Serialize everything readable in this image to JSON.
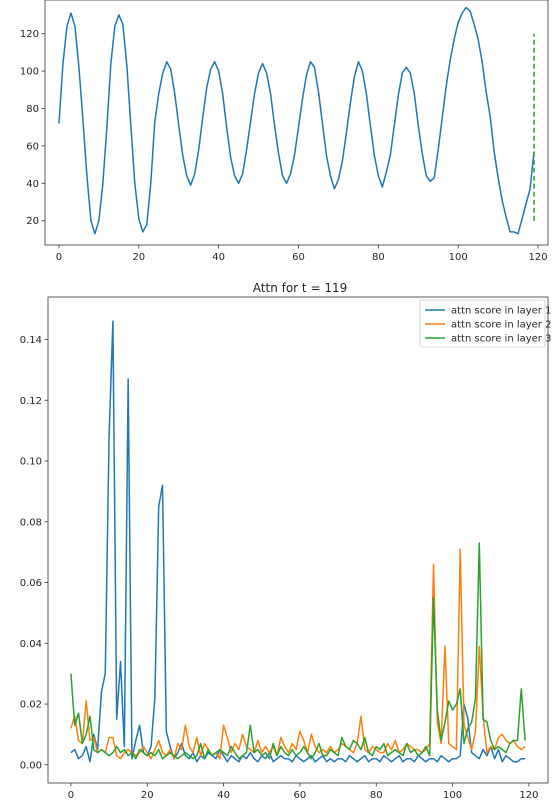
{
  "chart_data": [
    {
      "type": "line",
      "title": "",
      "xlabel": "",
      "ylabel": "",
      "xlim": [
        -3.5,
        122.5
      ],
      "ylim": [
        7,
        138
      ],
      "xticks": [
        0,
        20,
        40,
        60,
        80,
        100,
        120
      ],
      "yticks": [
        20,
        40,
        60,
        80,
        100,
        120
      ],
      "grid": false,
      "series": [
        {
          "color": "#1f77b4",
          "style": "solid",
          "x": [
            0,
            1,
            2,
            3,
            4,
            5,
            6,
            7,
            8,
            9,
            10,
            11,
            12,
            13,
            14,
            15,
            16,
            17,
            18,
            19,
            20,
            21,
            22,
            23,
            24,
            25,
            26,
            27,
            28,
            29,
            30,
            31,
            32,
            33,
            34,
            35,
            36,
            37,
            38,
            39,
            40,
            41,
            42,
            43,
            44,
            45,
            46,
            47,
            48,
            49,
            50,
            51,
            52,
            53,
            54,
            55,
            56,
            57,
            58,
            59,
            60,
            61,
            62,
            63,
            64,
            65,
            66,
            67,
            68,
            69,
            70,
            71,
            72,
            73,
            74,
            75,
            76,
            77,
            78,
            79,
            80,
            81,
            82,
            83,
            84,
            85,
            86,
            87,
            88,
            89,
            90,
            91,
            92,
            93,
            94,
            95,
            96,
            97,
            98,
            99,
            100,
            101,
            102,
            103,
            104,
            105,
            106,
            107,
            108,
            109,
            110,
            111,
            112,
            113,
            114,
            115,
            116,
            117,
            118,
            119
          ],
          "y": [
            72,
            104,
            124,
            131,
            124,
            102,
            74,
            44,
            20,
            13,
            20,
            40,
            70,
            104,
            124,
            130,
            125,
            103,
            71,
            40,
            21,
            14,
            18,
            40,
            73,
            88,
            99,
            105,
            101,
            88,
            71,
            55,
            44,
            39,
            45,
            58,
            75,
            91,
            101,
            105,
            100,
            88,
            70,
            54,
            44,
            40,
            45,
            58,
            73,
            88,
            99,
            104,
            99,
            88,
            71,
            56,
            44,
            40,
            45,
            55,
            70,
            85,
            98,
            105,
            102,
            89,
            72,
            55,
            44,
            37,
            42,
            52,
            67,
            83,
            97,
            105,
            100,
            88,
            71,
            55,
            44,
            38,
            46,
            55,
            71,
            87,
            99,
            102,
            99,
            88,
            71,
            56,
            44,
            41,
            43,
            58,
            75,
            92,
            106,
            117,
            126,
            131,
            134,
            132,
            125,
            117,
            105,
            89,
            76,
            57,
            43,
            31,
            22,
            14,
            14,
            13,
            21,
            29,
            37,
            57
          ]
        },
        {
          "color": "#2ca02c",
          "style": "dashed",
          "x": [
            119,
            119
          ],
          "y": [
            20,
            120
          ]
        }
      ]
    },
    {
      "type": "line",
      "title": "Attn for t = 119",
      "xlabel": "",
      "ylabel": "",
      "xlim": [
        -6,
        125
      ],
      "ylim": [
        -0.006,
        0.154
      ],
      "xticks": [
        0,
        20,
        40,
        60,
        80,
        100,
        120
      ],
      "yticks": [
        0.0,
        0.02,
        0.04,
        0.06,
        0.08,
        0.1,
        0.12,
        0.14
      ],
      "ytick_labels": [
        "0.00",
        "0.02",
        "0.04",
        "0.06",
        "0.08",
        "0.10",
        "0.12",
        "0.14"
      ],
      "grid": false,
      "legend": "top-right",
      "series": [
        {
          "name": "attn score in layer 1",
          "color": "#1f77b4",
          "x": [
            0,
            1,
            2,
            3,
            4,
            5,
            6,
            7,
            8,
            9,
            10,
            11,
            12,
            13,
            14,
            15,
            16,
            17,
            18,
            19,
            20,
            21,
            22,
            23,
            24,
            25,
            26,
            27,
            28,
            29,
            30,
            31,
            32,
            33,
            34,
            35,
            36,
            37,
            38,
            39,
            40,
            41,
            42,
            43,
            44,
            45,
            46,
            47,
            48,
            49,
            50,
            51,
            52,
            53,
            54,
            55,
            56,
            57,
            58,
            59,
            60,
            61,
            62,
            63,
            64,
            65,
            66,
            67,
            68,
            69,
            70,
            71,
            72,
            73,
            74,
            75,
            76,
            77,
            78,
            79,
            80,
            81,
            82,
            83,
            84,
            85,
            86,
            87,
            88,
            89,
            90,
            91,
            92,
            93,
            94,
            95,
            96,
            97,
            98,
            99,
            100,
            101,
            102,
            103,
            104,
            105,
            106,
            107,
            108,
            109,
            110,
            111,
            112,
            113,
            114,
            115,
            116,
            117,
            118,
            119
          ],
          "y": [
            0.004,
            0.005,
            0.002,
            0.003,
            0.006,
            0.001,
            0.01,
            0.005,
            0.024,
            0.03,
            0.108,
            0.146,
            0.015,
            0.034,
            0.006,
            0.127,
            0.002,
            0.008,
            0.013,
            0.004,
            0.003,
            0.006,
            0.022,
            0.085,
            0.092,
            0.011,
            0.006,
            0.002,
            0.004,
            0.007,
            0.003,
            0.002,
            0.004,
            0.001,
            0.003,
            0.002,
            0.004,
            0.003,
            0.002,
            0.005,
            0.003,
            0.001,
            0.003,
            0.002,
            0.001,
            0.003,
            0.002,
            0.004,
            0.002,
            0.001,
            0.003,
            0.002,
            0.004,
            0.001,
            0.002,
            0.003,
            0.002,
            0.002,
            0.001,
            0.003,
            0.002,
            0.001,
            0.002,
            0.003,
            0.001,
            0.002,
            0.003,
            0.001,
            0.002,
            0.001,
            0.002,
            0.002,
            0.001,
            0.003,
            0.002,
            0.001,
            0.002,
            0.003,
            0.001,
            0.002,
            0.002,
            0.001,
            0.003,
            0.002,
            0.001,
            0.002,
            0.003,
            0.001,
            0.002,
            0.002,
            0.001,
            0.003,
            0.002,
            0.001,
            0.002,
            0.002,
            0.001,
            0.003,
            0.002,
            0.001,
            0.002,
            0.002,
            0.003,
            0.02,
            0.015,
            0.004,
            0.003,
            0.002,
            0.005,
            0.003,
            0.006,
            0.002,
            0.005,
            0.001,
            0.003,
            0.002,
            0.001,
            0.001,
            0.002,
            0.002
          ]
        },
        {
          "name": "attn score in layer 2",
          "color": "#ff7f0e",
          "x": [
            0,
            1,
            2,
            3,
            4,
            5,
            6,
            7,
            8,
            9,
            10,
            11,
            12,
            13,
            14,
            15,
            16,
            17,
            18,
            19,
            20,
            21,
            22,
            23,
            24,
            25,
            26,
            27,
            28,
            29,
            30,
            31,
            32,
            33,
            34,
            35,
            36,
            37,
            38,
            39,
            40,
            41,
            42,
            43,
            44,
            45,
            46,
            47,
            48,
            49,
            50,
            51,
            52,
            53,
            54,
            55,
            56,
            57,
            58,
            59,
            60,
            61,
            62,
            63,
            64,
            65,
            66,
            67,
            68,
            69,
            70,
            71,
            72,
            73,
            74,
            75,
            76,
            77,
            78,
            79,
            80,
            81,
            82,
            83,
            84,
            85,
            86,
            87,
            88,
            89,
            90,
            91,
            92,
            93,
            94,
            95,
            96,
            97,
            98,
            99,
            100,
            101,
            102,
            103,
            104,
            105,
            106,
            107,
            108,
            109,
            110,
            111,
            112,
            113,
            114,
            115,
            116,
            117,
            118,
            119
          ],
          "y": [
            0.012,
            0.016,
            0.008,
            0.007,
            0.021,
            0.008,
            0.009,
            0.004,
            0.005,
            0.004,
            0.009,
            0.009,
            0.003,
            0.002,
            0.004,
            0.005,
            0.004,
            0.003,
            0.004,
            0.006,
            0.004,
            0.002,
            0.005,
            0.008,
            0.004,
            0.003,
            0.005,
            0.002,
            0.007,
            0.005,
            0.013,
            0.006,
            0.004,
            0.009,
            0.003,
            0.007,
            0.005,
            0.003,
            0.004,
            0.002,
            0.013,
            0.009,
            0.004,
            0.007,
            0.005,
            0.01,
            0.006,
            0.005,
            0.004,
            0.008,
            0.004,
            0.006,
            0.004,
            0.006,
            0.003,
            0.009,
            0.006,
            0.004,
            0.007,
            0.005,
            0.011,
            0.008,
            0.004,
            0.01,
            0.006,
            0.004,
            0.005,
            0.004,
            0.006,
            0.004,
            0.005,
            0.007,
            0.006,
            0.005,
            0.004,
            0.007,
            0.016,
            0.005,
            0.004,
            0.006,
            0.005,
            0.004,
            0.004,
            0.007,
            0.005,
            0.008,
            0.004,
            0.005,
            0.007,
            0.006,
            0.005,
            0.005,
            0.004,
            0.005,
            0.007,
            0.066,
            0.014,
            0.007,
            0.039,
            0.007,
            0.006,
            0.005,
            0.071,
            0.013,
            0.009,
            0.005,
            0.011,
            0.039,
            0.016,
            0.004,
            0.006,
            0.005,
            0.009,
            0.01,
            0.008,
            0.007,
            0.008,
            0.006,
            0.005,
            0.006
          ]
        },
        {
          "name": "attn score in layer 3",
          "color": "#2ca02c",
          "x": [
            0,
            1,
            2,
            3,
            4,
            5,
            6,
            7,
            8,
            9,
            10,
            11,
            12,
            13,
            14,
            15,
            16,
            17,
            18,
            19,
            20,
            21,
            22,
            23,
            24,
            25,
            26,
            27,
            28,
            29,
            30,
            31,
            32,
            33,
            34,
            35,
            36,
            37,
            38,
            39,
            40,
            41,
            42,
            43,
            44,
            45,
            46,
            47,
            48,
            49,
            50,
            51,
            52,
            53,
            54,
            55,
            56,
            57,
            58,
            59,
            60,
            61,
            62,
            63,
            64,
            65,
            66,
            67,
            68,
            69,
            70,
            71,
            72,
            73,
            74,
            75,
            76,
            77,
            78,
            79,
            80,
            81,
            82,
            83,
            84,
            85,
            86,
            87,
            88,
            89,
            90,
            91,
            92,
            93,
            94,
            95,
            96,
            97,
            98,
            99,
            100,
            101,
            102,
            103,
            104,
            105,
            106,
            107,
            108,
            109,
            110,
            111,
            112,
            113,
            114,
            115,
            116,
            117,
            118,
            119
          ],
          "y": [
            0.03,
            0.013,
            0.017,
            0.007,
            0.01,
            0.016,
            0.005,
            0.004,
            0.005,
            0.004,
            0.003,
            0.004,
            0.006,
            0.004,
            0.005,
            0.003,
            0.004,
            0.002,
            0.005,
            0.004,
            0.003,
            0.004,
            0.003,
            0.005,
            0.002,
            0.003,
            0.004,
            0.003,
            0.002,
            0.003,
            0.004,
            0.003,
            0.002,
            0.003,
            0.007,
            0.002,
            0.005,
            0.003,
            0.004,
            0.005,
            0.004,
            0.003,
            0.006,
            0.004,
            0.002,
            0.003,
            0.004,
            0.013,
            0.004,
            0.005,
            0.003,
            0.004,
            0.002,
            0.007,
            0.003,
            0.006,
            0.004,
            0.003,
            0.005,
            0.003,
            0.004,
            0.006,
            0.004,
            0.002,
            0.004,
            0.007,
            0.003,
            0.003,
            0.005,
            0.004,
            0.003,
            0.009,
            0.006,
            0.005,
            0.008,
            0.007,
            0.005,
            0.009,
            0.004,
            0.003,
            0.006,
            0.005,
            0.007,
            0.003,
            0.004,
            0.005,
            0.004,
            0.003,
            0.007,
            0.004,
            0.005,
            0.003,
            0.004,
            0.006,
            0.003,
            0.055,
            0.018,
            0.008,
            0.014,
            0.021,
            0.018,
            0.02,
            0.025,
            0.007,
            0.012,
            0.014,
            0.022,
            0.073,
            0.015,
            0.014,
            0.008,
            0.005,
            0.006,
            0.005,
            0.004,
            0.007,
            0.008,
            0.008,
            0.025,
            0.008
          ]
        }
      ]
    }
  ]
}
